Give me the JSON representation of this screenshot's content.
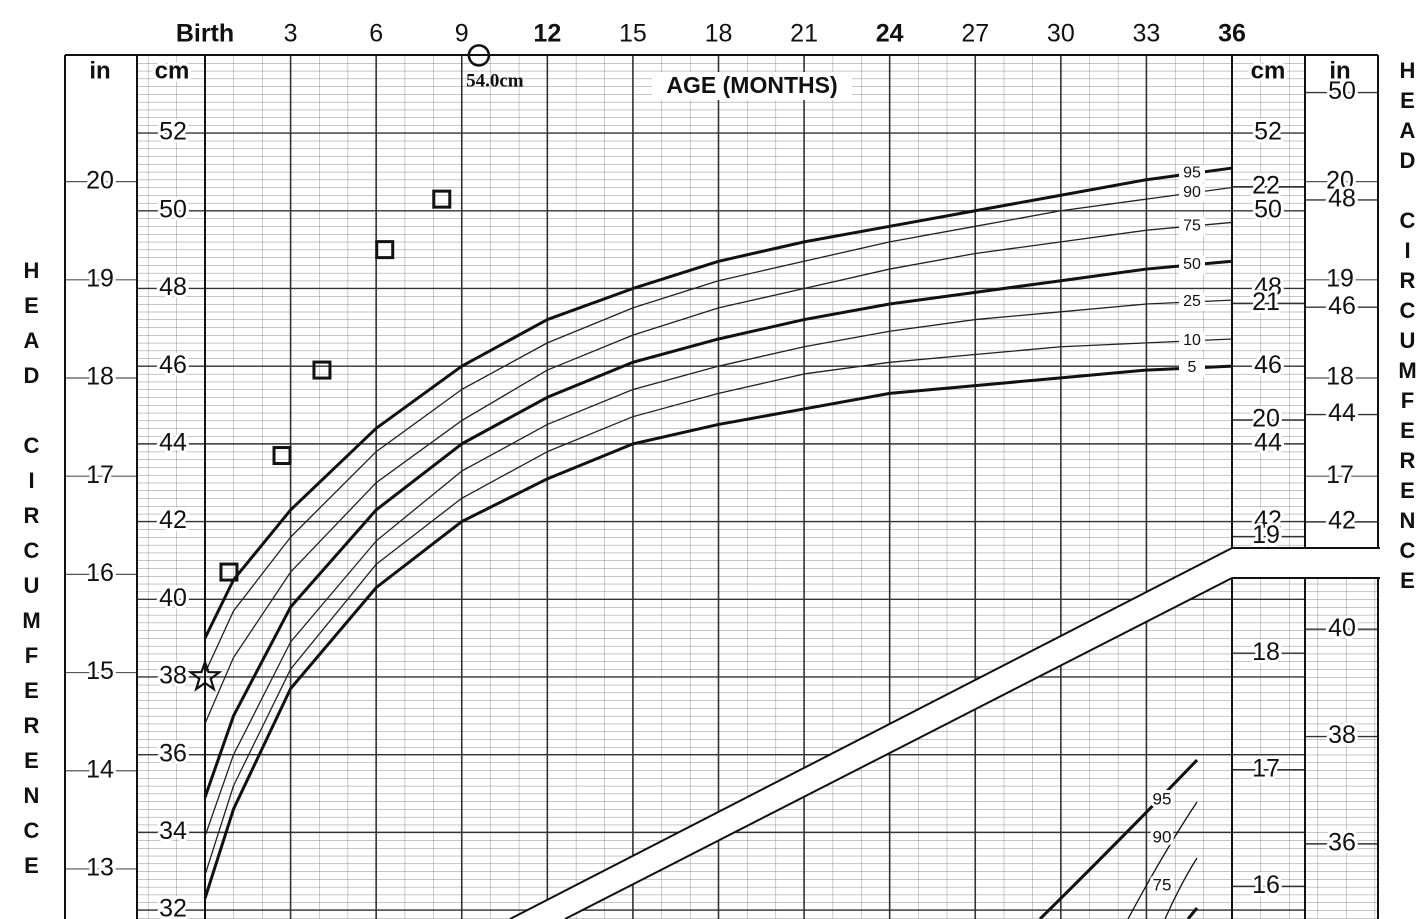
{
  "chart_data": {
    "type": "line",
    "x_label": "AGE (MONTHS)",
    "y_label": "HEAD CIRCUMFERENCE",
    "y_unit": "cm",
    "y2_unit": "in",
    "x": [
      0,
      1,
      3,
      6,
      9,
      12,
      15,
      18,
      21,
      24,
      27,
      30,
      33,
      36
    ],
    "series": [
      {
        "name": "95",
        "color": "#111111",
        "bold": true,
        "values": [
          39.0,
          40.5,
          42.3,
          44.4,
          46.0,
          47.2,
          48.0,
          48.7,
          49.2,
          49.6,
          50.0,
          50.4,
          50.8,
          51.1
        ]
      },
      {
        "name": "90",
        "color": "#222222",
        "bold": false,
        "values": [
          38.1,
          39.7,
          41.6,
          43.8,
          45.4,
          46.6,
          47.5,
          48.2,
          48.7,
          49.2,
          49.6,
          50.0,
          50.3,
          50.6
        ]
      },
      {
        "name": "75",
        "color": "#222222",
        "bold": false,
        "values": [
          36.8,
          38.5,
          40.7,
          43.0,
          44.6,
          45.9,
          46.8,
          47.5,
          48.0,
          48.5,
          48.9,
          49.2,
          49.5,
          49.7
        ]
      },
      {
        "name": "50",
        "color": "#111111",
        "bold": true,
        "values": [
          34.9,
          37.0,
          39.8,
          42.3,
          44.0,
          45.2,
          46.1,
          46.7,
          47.2,
          47.6,
          47.9,
          48.2,
          48.5,
          48.7
        ]
      },
      {
        "name": "25",
        "color": "#222222",
        "bold": false,
        "values": [
          33.9,
          36.0,
          38.9,
          41.5,
          43.3,
          44.5,
          45.4,
          46.0,
          46.5,
          46.9,
          47.2,
          47.4,
          47.6,
          47.7
        ]
      },
      {
        "name": "10",
        "color": "#222222",
        "bold": false,
        "values": [
          32.9,
          35.2,
          38.2,
          40.9,
          42.6,
          43.8,
          44.7,
          45.3,
          45.8,
          46.1,
          46.3,
          46.5,
          46.6,
          46.7
        ]
      },
      {
        "name": "5",
        "color": "#111111",
        "bold": true,
        "values": [
          32.3,
          34.6,
          37.7,
          40.3,
          42.0,
          43.1,
          44.0,
          44.5,
          44.9,
          45.3,
          45.5,
          45.7,
          45.9,
          46.0
        ]
      }
    ],
    "points": {
      "x": [
        0,
        0.84,
        2.7,
        4.1,
        6.3,
        8.3
      ],
      "values": [
        38.0,
        40.7,
        43.7,
        45.9,
        49.0,
        50.3
      ],
      "shapes": [
        "star",
        "square",
        "square",
        "square",
        "square",
        "square"
      ]
    },
    "annotation": {
      "text": "54.0cm",
      "x": 9.6,
      "y": 54.0
    },
    "xlim": [
      0,
      36
    ],
    "xticks": [
      {
        "value": 0,
        "label": "Birth"
      },
      3,
      6,
      9,
      12,
      15,
      18,
      21,
      24,
      27,
      30,
      33,
      36
    ],
    "ylim": [
      31.77,
      54.01
    ],
    "yticks": [
      32,
      34,
      36,
      38,
      40,
      42,
      44,
      46,
      48,
      50,
      52
    ],
    "y2lim": [
      12.49,
      21.29
    ],
    "y2ticks": [
      13,
      14,
      15,
      16,
      17,
      18,
      19,
      20
    ],
    "grid": true
  },
  "inset": {
    "in_lim": [
      15.72,
      23.13
    ],
    "in_ticks": [
      16,
      17,
      18,
      19,
      20,
      21,
      22
    ],
    "cm_lim": [
      34.6,
      50.7
    ],
    "cm_ticks": [
      36,
      38,
      40,
      42,
      44,
      46,
      48,
      50
    ],
    "curve_labels": [
      "95",
      "90",
      "75"
    ]
  }
}
